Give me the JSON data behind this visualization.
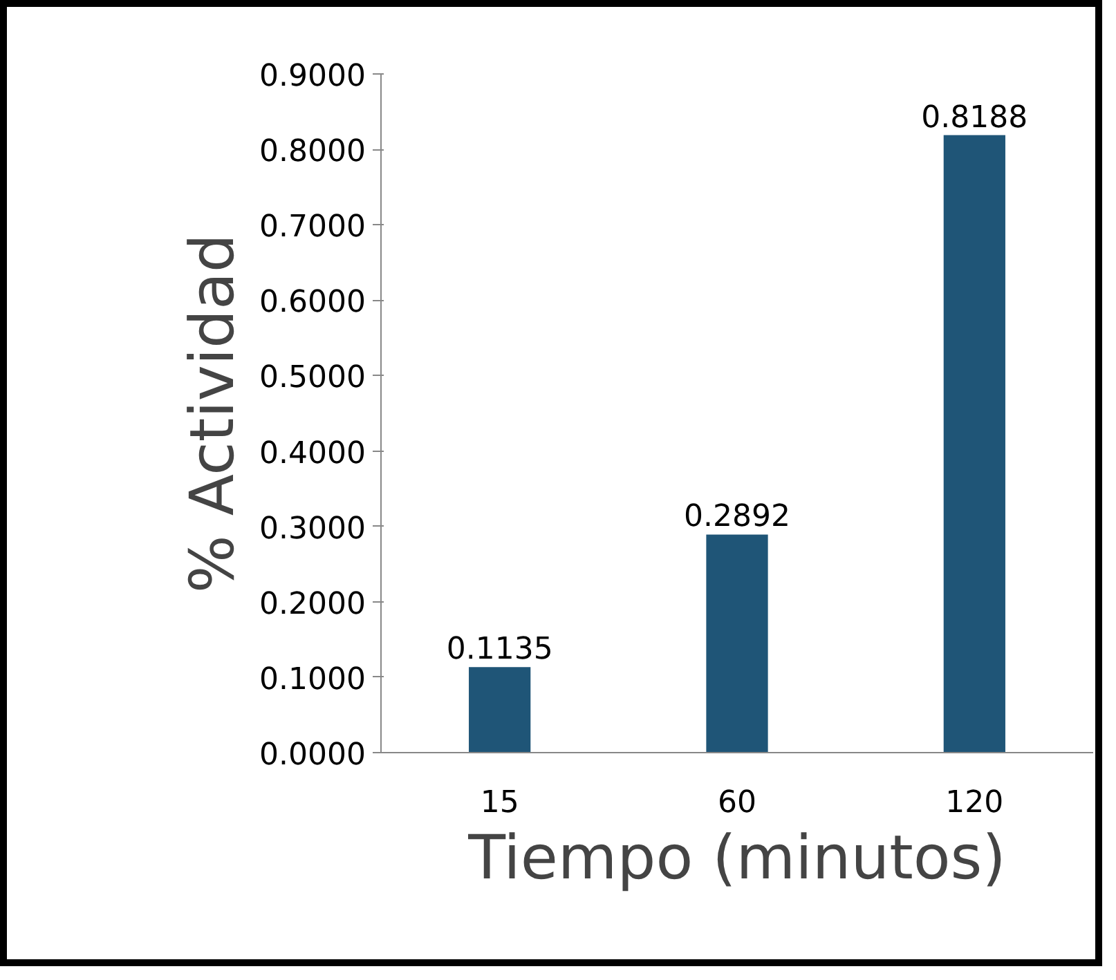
{
  "chart_data": {
    "type": "bar",
    "xlabel": "Tiempo (minutos)",
    "ylabel": "% Actividad",
    "categories": [
      "15",
      "60",
      "120"
    ],
    "values": [
      0.1135,
      0.2892,
      0.8188
    ],
    "color": "#1f5577",
    "data_labels": true,
    "ylim": [
      0,
      0.9
    ],
    "yticks": [
      {
        "value": 0,
        "label": "0.0000"
      },
      {
        "value": 0.1,
        "label": "0.1000"
      },
      {
        "value": 0.2,
        "label": "0.2000"
      },
      {
        "value": 0.3,
        "label": "0.3000"
      },
      {
        "value": 0.4,
        "label": "0.4000"
      },
      {
        "value": 0.5,
        "label": "0.5000"
      },
      {
        "value": 0.6,
        "label": "0.6000"
      },
      {
        "value": 0.7,
        "label": "0.7000"
      },
      {
        "value": 0.8,
        "label": "0.8000"
      },
      {
        "value": 0.9,
        "label": "0.9000"
      }
    ],
    "grid": false
  }
}
